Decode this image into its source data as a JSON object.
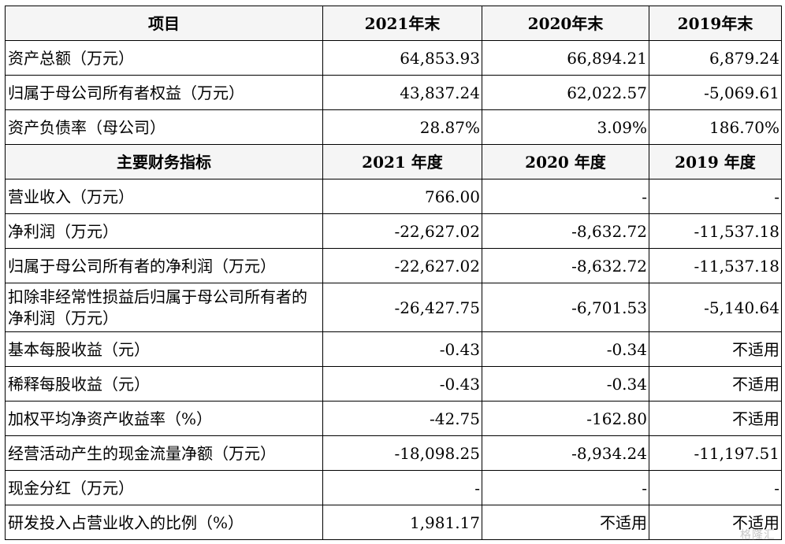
{
  "header1": [
    "项目",
    "2021年末",
    "2020年末",
    "2019年末"
  ],
  "rows1": [
    {
      "label": "资产总额（万元）",
      "v2021": "64,853.93",
      "v2020": "66,894.21",
      "v2019": "6,879.24"
    },
    {
      "label": "归属于母公司所有者权益（万元）",
      "v2021": "43,837.24",
      "v2020": "62,022.57",
      "v2019": "-5,069.61"
    },
    {
      "label": "资产负债率（母公司）",
      "v2021": "28.87%",
      "v2020": "3.09%",
      "v2019": "186.70%"
    }
  ],
  "header2": [
    "主要财务指标",
    "2021 年度",
    "2020 年度",
    "2019 年度"
  ],
  "rows2": [
    {
      "label": "营业收入（万元）",
      "v2021": "766.00",
      "v2020": "-",
      "v2019": "-"
    },
    {
      "label": "净利润（万元）",
      "v2021": "-22,627.02",
      "v2020": "-8,632.72",
      "v2019": "-11,537.18"
    },
    {
      "label": "归属于母公司所有者的净利润（万元）",
      "v2021": "-22,627.02",
      "v2020": "-8,632.72",
      "v2019": "-11,537.18"
    },
    {
      "label": "扣除非经常性损益后归属于母公司所有者的净利润（万元）",
      "v2021": "-26,427.75",
      "v2020": "-6,701.53",
      "v2019": "-5,140.64"
    },
    {
      "label": "基本每股收益（元）",
      "v2021": "-0.43",
      "v2020": "-0.34",
      "v2019": "不适用"
    },
    {
      "label": "稀释每股收益（元）",
      "v2021": "-0.43",
      "v2020": "-0.34",
      "v2019": "不适用"
    },
    {
      "label": "加权平均净资产收益率（%）",
      "v2021": "-42.75",
      "v2020": "-162.80",
      "v2019": "不适用"
    },
    {
      "label": "经营活动产生的现金流量净额（万元）",
      "v2021": "-18,098.25",
      "v2020": "-8,934.24",
      "v2019": "-11,197.51"
    },
    {
      "label": "现金分红（万元）",
      "v2021": "-",
      "v2020": "-",
      "v2019": "-"
    },
    {
      "label": "研发投入占营业收入的比例（%）",
      "v2021": "1,981.17",
      "v2020": "不适用",
      "v2019": "不适用"
    }
  ],
  "watermark": "格隆汇"
}
